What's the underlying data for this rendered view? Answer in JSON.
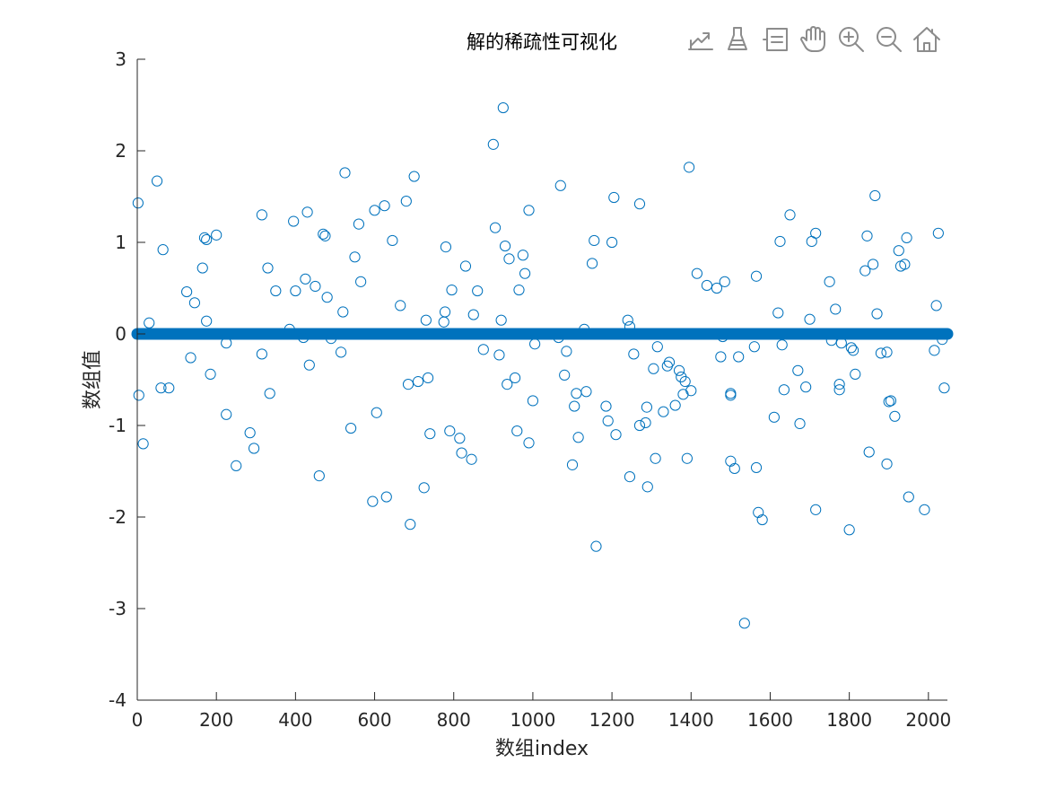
{
  "toolbar": {
    "icons": [
      "export-icon",
      "brush-icon",
      "datatip-icon",
      "pan-icon",
      "zoom-in-icon",
      "zoom-out-icon",
      "home-icon"
    ]
  },
  "chart_data": {
    "type": "scatter",
    "title": "解的稀疏性可视化",
    "xlabel": "数组index",
    "ylabel": "数组值",
    "xlim": [
      0,
      2048
    ],
    "ylim": [
      -4,
      3
    ],
    "xticks": [
      0,
      200,
      400,
      600,
      800,
      1000,
      1200,
      1400,
      1600,
      1800,
      2000
    ],
    "yticks": [
      -4,
      -3,
      -2,
      -1,
      0,
      1,
      2,
      3
    ],
    "grid": false,
    "marker": "open-circle",
    "series_color": "#0072bd",
    "zero_band": {
      "x_start": 0,
      "x_end": 2048,
      "value": 0
    },
    "points": [
      [
        2,
        1.43
      ],
      [
        4,
        -0.67
      ],
      [
        15,
        -1.2
      ],
      [
        30,
        0.12
      ],
      [
        50,
        1.67
      ],
      [
        60,
        -0.59
      ],
      [
        65,
        0.92
      ],
      [
        80,
        -0.59
      ],
      [
        125,
        0.46
      ],
      [
        135,
        -0.26
      ],
      [
        145,
        0.34
      ],
      [
        165,
        0.72
      ],
      [
        170,
        1.05
      ],
      [
        175,
        1.03
      ],
      [
        175,
        0.14
      ],
      [
        185,
        -0.44
      ],
      [
        200,
        1.08
      ],
      [
        225,
        -0.1
      ],
      [
        225,
        -0.88
      ],
      [
        250,
        -1.44
      ],
      [
        285,
        -1.08
      ],
      [
        295,
        -1.25
      ],
      [
        315,
        1.3
      ],
      [
        315,
        -0.22
      ],
      [
        330,
        0.72
      ],
      [
        335,
        -0.65
      ],
      [
        350,
        0.47
      ],
      [
        385,
        0.05
      ],
      [
        395,
        1.23
      ],
      [
        400,
        0.47
      ],
      [
        420,
        -0.04
      ],
      [
        425,
        0.6
      ],
      [
        430,
        1.33
      ],
      [
        435,
        -0.34
      ],
      [
        450,
        0.52
      ],
      [
        460,
        -1.55
      ],
      [
        470,
        1.09
      ],
      [
        475,
        1.07
      ],
      [
        480,
        0.4
      ],
      [
        490,
        -0.05
      ],
      [
        515,
        -0.2
      ],
      [
        520,
        0.24
      ],
      [
        525,
        1.76
      ],
      [
        540,
        -1.03
      ],
      [
        550,
        0.84
      ],
      [
        560,
        1.2
      ],
      [
        565,
        0.57
      ],
      [
        595,
        -1.83
      ],
      [
        600,
        1.35
      ],
      [
        605,
        -0.86
      ],
      [
        625,
        1.4
      ],
      [
        630,
        -1.78
      ],
      [
        645,
        1.02
      ],
      [
        665,
        0.31
      ],
      [
        680,
        1.45
      ],
      [
        685,
        -0.55
      ],
      [
        690,
        -2.08
      ],
      [
        700,
        1.72
      ],
      [
        710,
        -0.52
      ],
      [
        725,
        -1.68
      ],
      [
        730,
        0.15
      ],
      [
        735,
        -0.48
      ],
      [
        740,
        -1.09
      ],
      [
        775,
        0.13
      ],
      [
        778,
        0.24
      ],
      [
        780,
        0.95
      ],
      [
        790,
        -1.06
      ],
      [
        795,
        0.48
      ],
      [
        815,
        -1.14
      ],
      [
        820,
        -1.3
      ],
      [
        830,
        0.74
      ],
      [
        845,
        -1.37
      ],
      [
        850,
        0.21
      ],
      [
        860,
        0.47
      ],
      [
        875,
        -0.17
      ],
      [
        900,
        2.07
      ],
      [
        905,
        1.16
      ],
      [
        915,
        -0.23
      ],
      [
        920,
        0.15
      ],
      [
        925,
        2.47
      ],
      [
        930,
        0.96
      ],
      [
        935,
        -0.55
      ],
      [
        940,
        0.82
      ],
      [
        955,
        -0.48
      ],
      [
        960,
        -1.06
      ],
      [
        965,
        0.48
      ],
      [
        975,
        0.86
      ],
      [
        980,
        0.66
      ],
      [
        990,
        1.35
      ],
      [
        990,
        -1.19
      ],
      [
        1000,
        -0.73
      ],
      [
        1005,
        -0.11
      ],
      [
        1065,
        -0.04
      ],
      [
        1070,
        1.62
      ],
      [
        1080,
        -0.45
      ],
      [
        1085,
        -0.19
      ],
      [
        1100,
        -1.43
      ],
      [
        1105,
        -0.79
      ],
      [
        1110,
        -0.65
      ],
      [
        1115,
        -1.13
      ],
      [
        1130,
        0.05
      ],
      [
        1135,
        -0.63
      ],
      [
        1150,
        0.77
      ],
      [
        1155,
        1.02
      ],
      [
        1160,
        -2.32
      ],
      [
        1185,
        -0.79
      ],
      [
        1190,
        -0.95
      ],
      [
        1200,
        1.0
      ],
      [
        1205,
        1.49
      ],
      [
        1210,
        -1.1
      ],
      [
        1240,
        0.15
      ],
      [
        1245,
        0.08
      ],
      [
        1245,
        -1.56
      ],
      [
        1255,
        -0.22
      ],
      [
        1270,
        1.42
      ],
      [
        1270,
        -1.0
      ],
      [
        1285,
        -0.97
      ],
      [
        1288,
        -0.8
      ],
      [
        1290,
        -1.67
      ],
      [
        1305,
        -0.38
      ],
      [
        1310,
        -1.36
      ],
      [
        1315,
        -0.14
      ],
      [
        1330,
        -0.85
      ],
      [
        1340,
        -0.35
      ],
      [
        1345,
        -0.31
      ],
      [
        1360,
        -0.78
      ],
      [
        1370,
        -0.4
      ],
      [
        1375,
        -0.47
      ],
      [
        1380,
        -0.66
      ],
      [
        1385,
        -0.52
      ],
      [
        1390,
        -1.36
      ],
      [
        1395,
        1.82
      ],
      [
        1400,
        -0.62
      ],
      [
        1415,
        0.66
      ],
      [
        1440,
        0.53
      ],
      [
        1465,
        0.5
      ],
      [
        1475,
        -0.25
      ],
      [
        1480,
        -0.03
      ],
      [
        1485,
        0.57
      ],
      [
        1500,
        -0.65
      ],
      [
        1500,
        -0.67
      ],
      [
        1500,
        -1.39
      ],
      [
        1510,
        -1.47
      ],
      [
        1520,
        -0.25
      ],
      [
        1535,
        -3.16
      ],
      [
        1560,
        -0.14
      ],
      [
        1565,
        0.63
      ],
      [
        1565,
        -1.46
      ],
      [
        1570,
        -1.95
      ],
      [
        1580,
        -2.03
      ],
      [
        1610,
        -0.91
      ],
      [
        1620,
        0.23
      ],
      [
        1625,
        1.01
      ],
      [
        1630,
        -0.12
      ],
      [
        1635,
        -0.61
      ],
      [
        1650,
        1.3
      ],
      [
        1670,
        -0.4
      ],
      [
        1675,
        -0.98
      ],
      [
        1690,
        -0.58
      ],
      [
        1700,
        0.16
      ],
      [
        1705,
        1.01
      ],
      [
        1715,
        1.1
      ],
      [
        1715,
        -1.92
      ],
      [
        1750,
        0.57
      ],
      [
        1755,
        -0.07
      ],
      [
        1765,
        0.27
      ],
      [
        1775,
        -0.61
      ],
      [
        1775,
        -0.55
      ],
      [
        1780,
        -0.1
      ],
      [
        1800,
        -2.14
      ],
      [
        1805,
        -0.15
      ],
      [
        1810,
        -0.18
      ],
      [
        1815,
        -0.44
      ],
      [
        1840,
        0.69
      ],
      [
        1845,
        1.07
      ],
      [
        1850,
        -1.29
      ],
      [
        1860,
        0.76
      ],
      [
        1865,
        1.51
      ],
      [
        1870,
        0.22
      ],
      [
        1880,
        -0.21
      ],
      [
        1895,
        -0.2
      ],
      [
        1895,
        -1.42
      ],
      [
        1900,
        -0.74
      ],
      [
        1905,
        -0.73
      ],
      [
        1915,
        -0.9
      ],
      [
        1925,
        0.91
      ],
      [
        1930,
        0.74
      ],
      [
        1940,
        0.76
      ],
      [
        1945,
        1.05
      ],
      [
        1950,
        -1.78
      ],
      [
        1990,
        -1.92
      ],
      [
        2015,
        -0.18
      ],
      [
        2020,
        0.31
      ],
      [
        2025,
        1.1
      ],
      [
        2035,
        -0.06
      ],
      [
        2040,
        -0.59
      ]
    ]
  }
}
